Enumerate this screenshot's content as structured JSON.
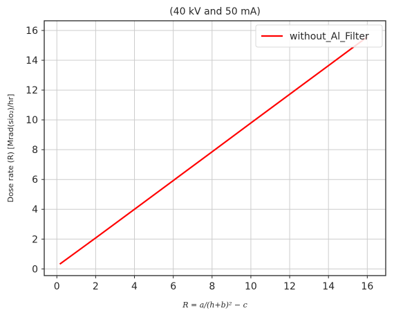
{
  "chart_data": {
    "type": "line",
    "title": "(40 kV and 50 mA)",
    "xlabel": "R = a/(h+b)² − c",
    "ylabel": "Dose rate (R) [Mrad(sio₂)/hr]",
    "xlim": [
      -0.65,
      16.95
    ],
    "ylim": [
      -0.45,
      16.65
    ],
    "xticks": [
      0,
      2,
      4,
      6,
      8,
      10,
      12,
      14,
      16
    ],
    "yticks": [
      0,
      2,
      4,
      6,
      8,
      10,
      12,
      14,
      16
    ],
    "grid": true,
    "legend_position": "top-right",
    "series": [
      {
        "name": "without_Al_Filter",
        "color": "#ff0000",
        "x": [
          0.15,
          2,
          4,
          6,
          8,
          10,
          12,
          14,
          16
        ],
        "y": [
          0.32,
          2.08,
          4.0,
          5.93,
          7.86,
          9.79,
          11.72,
          13.64,
          15.57
        ]
      }
    ]
  }
}
